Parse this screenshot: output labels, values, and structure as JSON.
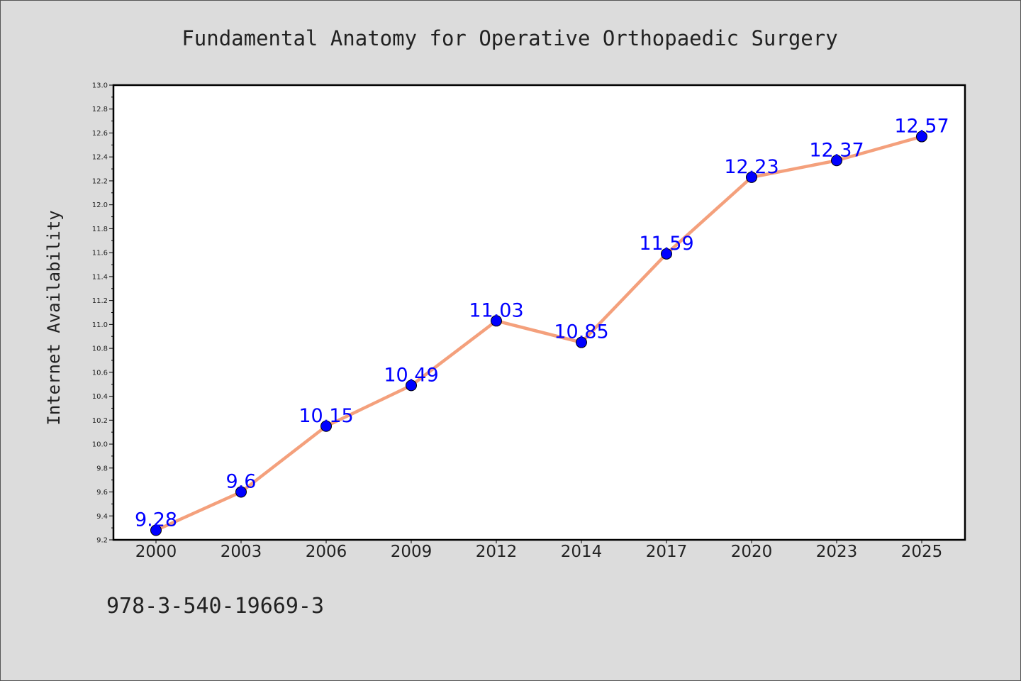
{
  "chart_data": {
    "type": "line",
    "title": "Fundamental Anatomy for Operative Orthopaedic Surgery",
    "xlabel": "",
    "ylabel": "Internet Availability",
    "categories": [
      "2000",
      "2003",
      "2006",
      "2009",
      "2012",
      "2014",
      "2017",
      "2020",
      "2023",
      "2025"
    ],
    "series": [
      {
        "values": [
          9.28,
          9.6,
          10.15,
          10.49,
          11.03,
          10.85,
          11.59,
          12.23,
          12.37,
          12.57
        ],
        "labels": [
          "9.28",
          "9.6",
          "10.15",
          "10.49",
          "11.03",
          "10.85",
          "11.59",
          "12.23",
          "12.37",
          "12.57"
        ],
        "line_color": "#f4a07c",
        "marker_color": "#0000ff"
      }
    ],
    "ylim": [
      9.2,
      13.0
    ],
    "yticks": [
      "9.2",
      "9.4",
      "9.6",
      "9.8",
      "10.0",
      "10.2",
      "10.4",
      "10.6",
      "10.8",
      "11.0",
      "11.2",
      "11.4",
      "11.6",
      "11.8",
      "12.0",
      "12.2",
      "12.4",
      "12.6",
      "12.8",
      "13.0"
    ],
    "grid": false,
    "legend": "none"
  },
  "footer_text": "978-3-540-19669-3",
  "colors": {
    "background": "#dcdcdc",
    "plot_area": "#ffffff",
    "line": "#f4a07c",
    "marker": "#0000ff",
    "data_label": "#0000ff"
  }
}
